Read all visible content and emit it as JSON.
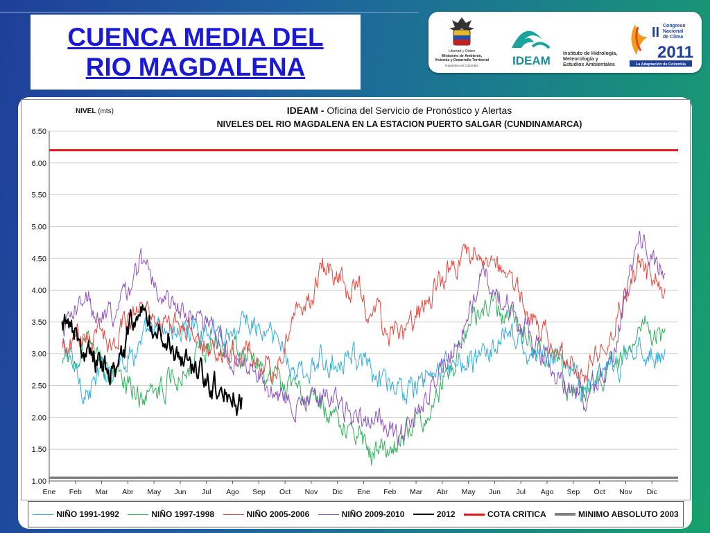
{
  "slide": {
    "title_line1": "CUENCA  MEDIA DEL",
    "title_line2": "RIO  MAGDALENA",
    "logos": {
      "ministerio": {
        "icon": "colombia-coat-of-arms-icon",
        "lines": [
          "Libertad y Orden",
          "Ministerio de Ambiente,",
          "Vivienda y Desarrollo Territorial",
          "República de Colombia"
        ]
      },
      "ideam": {
        "icon": "ideam-wave-icon",
        "name": "IDEAM",
        "lines": [
          "Instituto de Hidrología,",
          "Meteorología y",
          "Estudios Ambientales"
        ]
      },
      "congreso": {
        "icon": "congreso-clima-2011-logo",
        "numeral": "II",
        "lines": [
          "Congreso",
          "Nacional",
          "de Clima"
        ],
        "year": "2011",
        "tagline": "La Adaptación de Colombia"
      }
    }
  },
  "chart_data": {
    "type": "line",
    "title_bold": "IDEAM -",
    "title_rest": "Oficina del Servicio de Pronóstico y Alertas",
    "subtitle": "NIVELES DEL RIO MAGDALENA EN LA ESTACION PUERTO SALGAR (CUNDINAMARCA)",
    "ylabel_bold": "NIVEL",
    "ylabel_rest": "(mts)",
    "ylim": [
      1.0,
      6.5
    ],
    "yticks": [
      "1.00",
      "1.50",
      "2.00",
      "2.50",
      "3.00",
      "3.50",
      "4.00",
      "4.50",
      "5.00",
      "5.50",
      "6.00",
      "6.50"
    ],
    "x_categories": [
      "Ene",
      "Feb",
      "Mar",
      "Abr",
      "May",
      "Jun",
      "Jul",
      "Ago",
      "Sep",
      "Oct",
      "Nov",
      "Dic",
      "Ene",
      "Feb",
      "Mar",
      "Abr",
      "May",
      "Jun",
      "Jul",
      "Ago",
      "Sep",
      "Oct",
      "Nov",
      "Dic"
    ],
    "grid": true,
    "legend_position": "bottom",
    "reference_lines": [
      {
        "name": "COTA CRITICA",
        "value": 6.2,
        "color": "#e8151b"
      },
      {
        "name": "MINIMO ABSOLUTO 2003",
        "value": 1.05,
        "color": "#808080"
      }
    ],
    "series": [
      {
        "name": "NIÑO 1991-1992",
        "color": "#2eaee0",
        "month_means": [
          3.1,
          2.4,
          2.9,
          3.2,
          3.3,
          3.4,
          3.3,
          3.5,
          3.2,
          2.7,
          2.8,
          3.1,
          2.5,
          2.4,
          2.7,
          2.9,
          3.0,
          3.2,
          2.9,
          3.0,
          2.5,
          2.6,
          3.1,
          2.9
        ]
      },
      {
        "name": "NIÑO 1997-1998",
        "color": "#2eb35a",
        "month_means": [
          2.8,
          3.0,
          2.7,
          2.4,
          2.6,
          3.0,
          3.3,
          2.9,
          2.5,
          2.3,
          2.2,
          1.9,
          1.5,
          1.6,
          2.2,
          2.9,
          3.7,
          3.5,
          3.1,
          2.8,
          2.3,
          2.7,
          3.4,
          3.3
        ]
      },
      {
        "name": "NIÑO 2005-2006",
        "color": "#e8453c",
        "month_means": [
          3.0,
          3.3,
          3.3,
          3.8,
          3.5,
          3.2,
          3.0,
          3.1,
          2.7,
          3.6,
          4.3,
          4.0,
          3.6,
          3.2,
          3.9,
          4.4,
          4.6,
          4.2,
          3.6,
          3.0,
          2.6,
          3.4,
          4.4,
          3.9
        ]
      },
      {
        "name": "NIÑO 2009-2010",
        "color": "#8e4fc1",
        "month_means": [
          3.4,
          3.8,
          3.6,
          4.5,
          3.9,
          3.5,
          3.2,
          2.9,
          2.5,
          2.3,
          2.4,
          2.0,
          1.8,
          1.7,
          2.3,
          3.3,
          4.1,
          3.9,
          3.2,
          2.6,
          2.3,
          3.0,
          4.8,
          4.1
        ]
      },
      {
        "name": "2012",
        "color": "#000000",
        "month_means": [
          3.4,
          3.1,
          2.8,
          3.6,
          3.3,
          2.8,
          2.6,
          2.3
        ]
      }
    ]
  }
}
